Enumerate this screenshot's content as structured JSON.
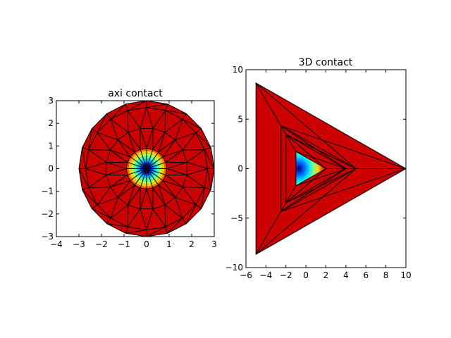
{
  "figure": {
    "background": "#ffffff",
    "fill_color": "#cc0000"
  },
  "chart_data": [
    {
      "type": "heatmap",
      "subtype": "filled-contour-on-triangulation",
      "title": "axi contact",
      "xlabel": "",
      "ylabel": "",
      "xlim": [
        -4,
        3
      ],
      "ylim": [
        -3,
        3
      ],
      "x_ticks": [
        -4,
        -3,
        -2,
        -1,
        0,
        1,
        2,
        3
      ],
      "y_ticks": [
        -3,
        -2,
        -1,
        0,
        1,
        2,
        3
      ],
      "x_tick_labels": [
        "−4",
        "−3",
        "−2",
        "−1",
        "0",
        "1",
        "2",
        "3"
      ],
      "y_tick_labels": [
        "−3",
        "−2",
        "−1",
        "0",
        "1",
        "2",
        "3"
      ],
      "grid": false,
      "mesh": {
        "center": [
          0,
          0
        ],
        "ring_radii": [
          0.9,
          1.8,
          2.7,
          3.0
        ],
        "segments": 20,
        "spokes_to_radius": 0.9,
        "field_radius": 0.95
      },
      "colormap": "jet",
      "background_field_color": "#cc0000"
    },
    {
      "type": "heatmap",
      "subtype": "filled-contour-on-triangulation",
      "title": "3D contact",
      "xlabel": "",
      "ylabel": "",
      "xlim": [
        -6,
        10
      ],
      "ylim": [
        -10,
        10
      ],
      "x_ticks": [
        -6,
        -4,
        -2,
        0,
        2,
        4,
        6,
        8,
        10
      ],
      "y_ticks": [
        -10,
        -5,
        0,
        5,
        10
      ],
      "x_tick_labels": [
        "−6",
        "−4",
        "−2",
        "0",
        "2",
        "4",
        "6",
        "8",
        "10"
      ],
      "y_tick_labels": [
        "−10",
        "−5",
        "0",
        "5",
        "10"
      ],
      "grid": false,
      "mesh": {
        "triangles": [
          {
            "apex": [
              10,
              0
            ],
            "left_top": [
              -5,
              8.66
            ],
            "left_bottom": [
              -5,
              -8.66
            ]
          },
          {
            "apex": [
              5,
              0
            ],
            "left_top": [
              -2.5,
              4.33
            ],
            "left_bottom": [
              -2.5,
              -4.33
            ]
          },
          {
            "apex": [
              4,
              0
            ],
            "left_top": [
              -2,
              3.46
            ],
            "left_bottom": [
              -2,
              -3.46
            ]
          },
          {
            "apex": [
              2,
              0
            ],
            "left_top": [
              -1,
              1.73
            ],
            "left_bottom": [
              -1,
              -1.73
            ]
          }
        ]
      },
      "colormap": "jet",
      "background_field_color": "#cc0000"
    }
  ]
}
